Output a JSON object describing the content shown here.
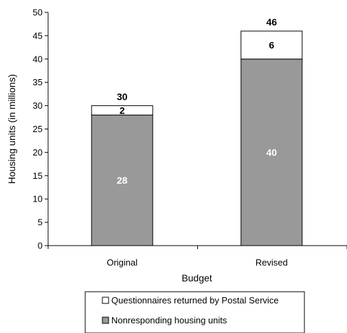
{
  "chart_data": {
    "type": "bar",
    "stacked": true,
    "categories": [
      "Original",
      "Revised"
    ],
    "series": [
      {
        "name": "Nonresponding housing units",
        "values": [
          28,
          40
        ],
        "color": "#999999"
      },
      {
        "name": "Questionnaires returned by Postal Service",
        "values": [
          2,
          6
        ],
        "color": "#ffffff"
      }
    ],
    "totals": [
      30,
      46
    ],
    "xlabel": "Budget",
    "ylabel": "Housing units (in millions)",
    "ylim": [
      0,
      50
    ],
    "yticks": [
      0,
      5,
      10,
      15,
      20,
      25,
      30,
      35,
      40,
      45,
      50
    ],
    "grid": false,
    "legend_position": "bottom",
    "legend_order": [
      1,
      0
    ]
  }
}
